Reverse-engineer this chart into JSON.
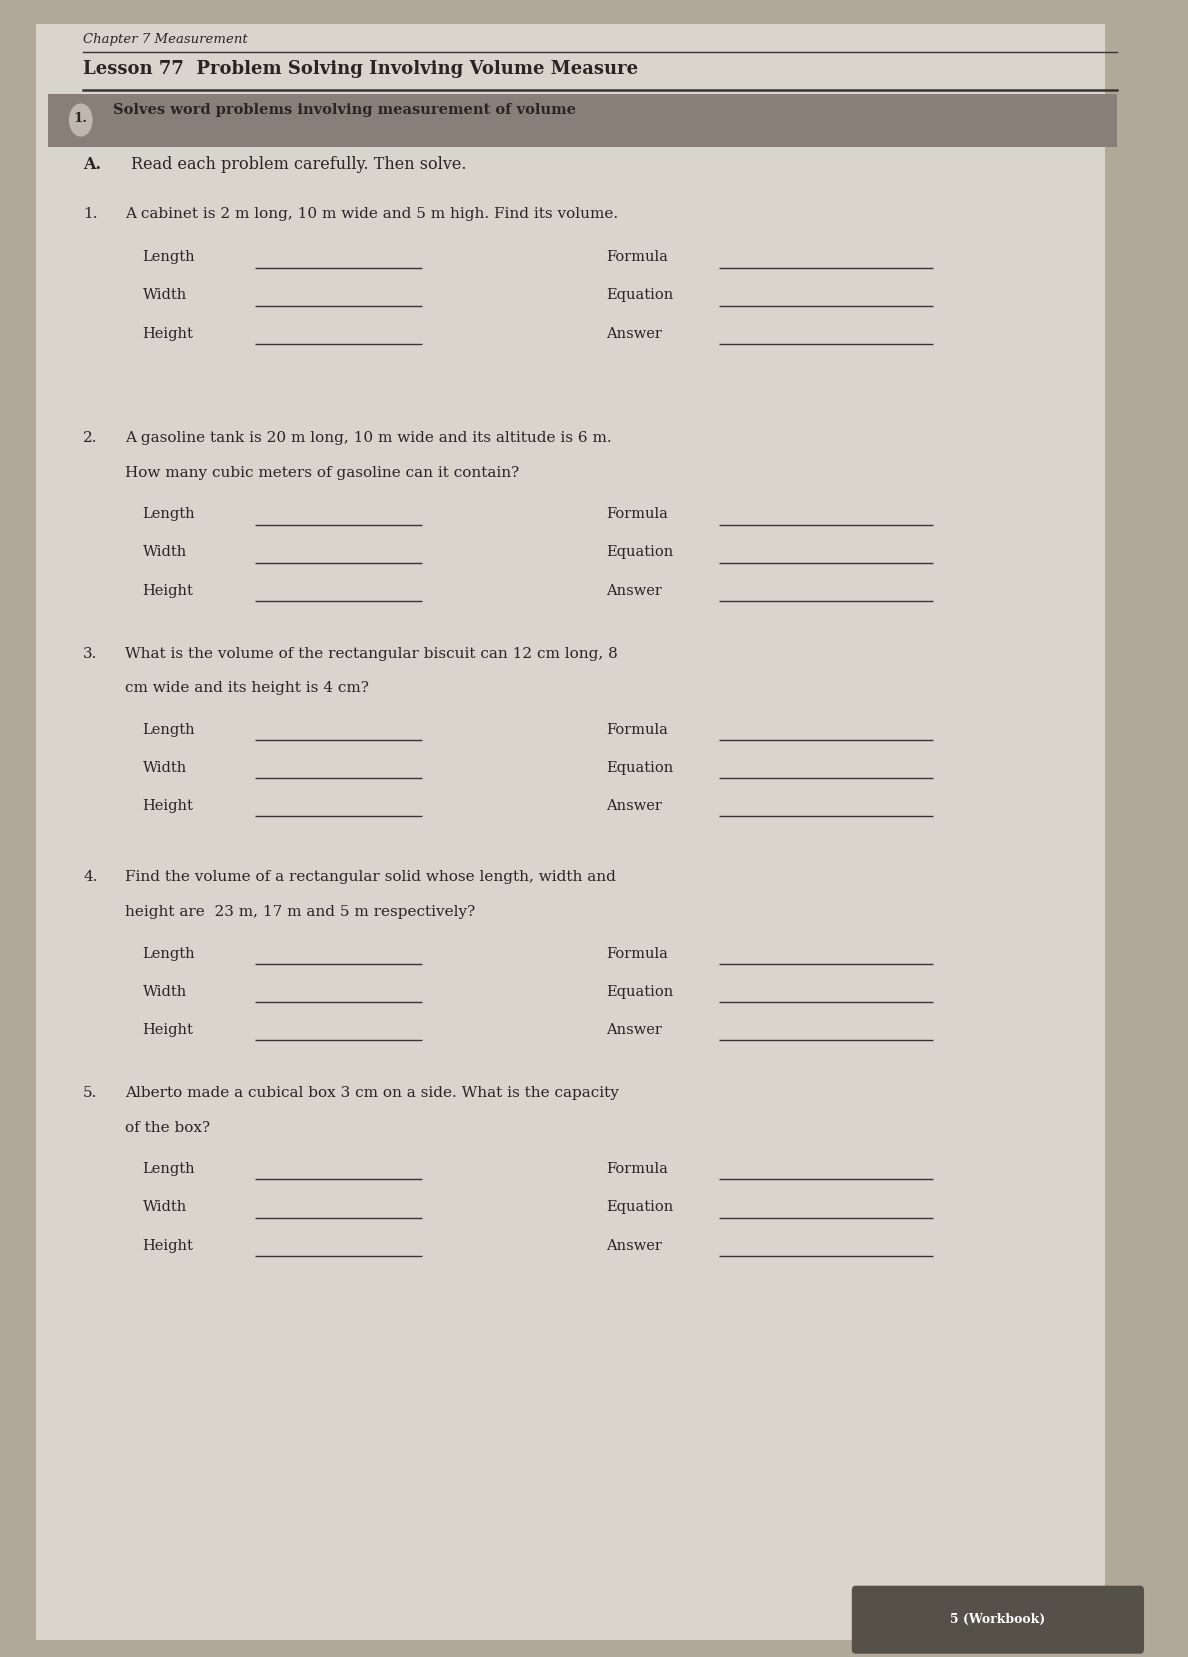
{
  "chapter_title": "Chapter 7 Measurement",
  "lesson_title": "Lesson 77  Problem Solving Involving Volume Measure",
  "objective_number": "1.",
  "objective_text": "Solves word problems involving measurement of volume",
  "section_label": "A.",
  "section_text": "Read each problem carefully. Then solve.",
  "problems": [
    {
      "number": "1.",
      "text_line1": "A cabinet is 2 m long, 10 m wide and 5 m high. Find its volume.",
      "text_line2": "",
      "left_labels": [
        "Length",
        "Width",
        "Height"
      ],
      "right_labels": [
        "Formula",
        "Equation",
        "Answer"
      ]
    },
    {
      "number": "2.",
      "text_line1": "A gasoline tank is 20 m long, 10 m wide and its altitude is 6 m.",
      "text_line2": "How many cubic meters of gasoline can it contain?",
      "left_labels": [
        "Length",
        "Width",
        "Height"
      ],
      "right_labels": [
        "Formula",
        "Equation",
        "Answer"
      ]
    },
    {
      "number": "3.",
      "text_line1": "What is the volume of the rectangular biscuit can 12 cm long, 8",
      "text_line2": "cm wide and its height is 4 cm?",
      "left_labels": [
        "Length",
        "Width",
        "Height"
      ],
      "right_labels": [
        "Formula",
        "Equation",
        "Answer"
      ]
    },
    {
      "number": "4.",
      "text_line1": "Find the volume of a rectangular solid whose length, width and",
      "text_line2": "height are  23 m, 17 m and 5 m respectively?",
      "left_labels": [
        "Length",
        "Width",
        "Height"
      ],
      "right_labels": [
        "Formula",
        "Equation",
        "Answer"
      ]
    },
    {
      "number": "5.",
      "text_line1": "Alberto made a cubical box 3 cm on a side. What is the capacity",
      "text_line2": "of the box?",
      "left_labels": [
        "Length",
        "Width",
        "Height"
      ],
      "right_labels": [
        "Formula",
        "Equation",
        "Answer"
      ]
    }
  ],
  "footer_text": "5 (Workbook)",
  "outer_bg_color": "#b0a898",
  "page_color": "#d9d4cc",
  "banner_color": "#888078",
  "text_color": "#2a2520",
  "line_color": "#3a3530"
}
